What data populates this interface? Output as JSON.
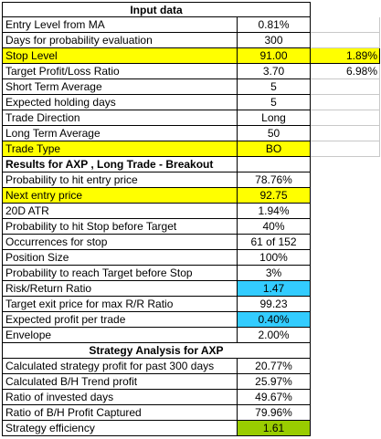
{
  "sheet": {
    "input_header": "Input data",
    "results_header": "Results for AXP , Long Trade - Breakout",
    "strategy_header": "Strategy Analysis for AXP",
    "rows": [
      {
        "label": "Entry Level from MA",
        "value": "0.81%",
        "extra": ""
      },
      {
        "label": "Days for probability evaluation",
        "value": "300",
        "extra": ""
      },
      {
        "label": "Stop Level",
        "value": "91.00",
        "extra": "1.89%"
      },
      {
        "label": "Target Profit/Loss Ratio",
        "value": "3.70",
        "extra": "6.98%"
      },
      {
        "label": "Short Term Average",
        "value": "5",
        "extra": ""
      },
      {
        "label": "Expected holding days",
        "value": "5",
        "extra": ""
      },
      {
        "label": "Trade Direction",
        "value": "Long",
        "extra": ""
      },
      {
        "label": "Long Term Average",
        "value": "50",
        "extra": ""
      },
      {
        "label": "Trade Type",
        "value": "BO",
        "extra": ""
      },
      {
        "label": "Probability to hit entry price",
        "value": "78.76%",
        "extra": ""
      },
      {
        "label": "Next entry price",
        "value": "92.75",
        "extra": ""
      },
      {
        "label": "20D ATR",
        "value": "1.94%",
        "extra": ""
      },
      {
        "label": "Probability to hit Stop before Target",
        "value": "40%",
        "extra": ""
      },
      {
        "label": "Occurrences for stop",
        "value": "61 of 152",
        "extra": ""
      },
      {
        "label": "Position Size",
        "value": "100%",
        "extra": ""
      },
      {
        "label": "Probability to reach Target before Stop",
        "value": "3%",
        "extra": ""
      },
      {
        "label": "Risk/Return Ratio",
        "value": "1.47",
        "extra": ""
      },
      {
        "label": "Target exit price for max R/R Ratio",
        "value": "99.23",
        "extra": ""
      },
      {
        "label": "Expected profit per trade",
        "value": "0.40%",
        "extra": ""
      },
      {
        "label": "Envelope",
        "value": "2.00%",
        "extra": ""
      },
      {
        "label": "Calculated strategy profit for past 300 days",
        "value": "20.77%",
        "extra": ""
      },
      {
        "label": "Calculated B/H Trend profit",
        "value": "25.97%",
        "extra": ""
      },
      {
        "label": "Ratio of invested days",
        "value": "49.67%",
        "extra": ""
      },
      {
        "label": "Ratio of B/H Profit Captured",
        "value": "79.96%",
        "extra": ""
      },
      {
        "label": "Strategy efficiency",
        "value": "1.61",
        "extra": ""
      }
    ]
  },
  "colors": {
    "highlight_yellow": "#ffff00",
    "highlight_blue": "#33ccff",
    "highlight_green": "#99cc00"
  }
}
